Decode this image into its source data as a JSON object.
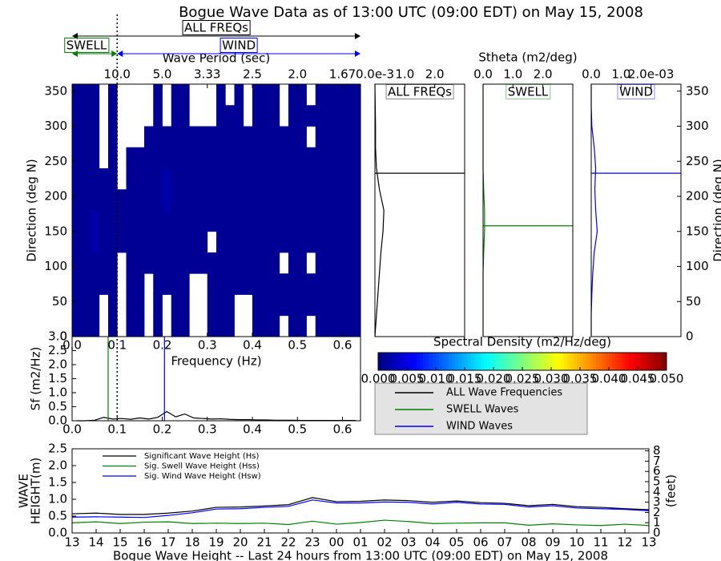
{
  "chart_data": [
    {
      "type": "heatmap",
      "title": "Bogue Wave Data as of 13:00 UTC (09:00 EDT) on May 15, 2008",
      "xlabel": "Frequency (Hz)",
      "x2label": "Wave Period (sec)",
      "ylabel": "Direction (deg N)",
      "xlim": [
        0,
        0.64
      ],
      "ylim": [
        0,
        360
      ],
      "xticks": [
        {
          "value": 0,
          "label": "0.0"
        },
        0.1,
        0.2,
        0.3,
        0.4,
        0.5,
        0.6
      ],
      "x2ticks": [
        {
          "value": 0.1,
          "label": "10.0"
        },
        {
          "value": 0.2,
          "label": "5.0"
        },
        {
          "value": 0.3,
          "label": "3.33"
        },
        {
          "value": 0.4,
          "label": "2.5"
        },
        {
          "value": 0.5,
          "label": "2.0"
        },
        {
          "value": 0.6,
          "label": "1.67"
        }
      ],
      "yticks": [
        0,
        50,
        100,
        150,
        200,
        250,
        300,
        350
      ],
      "separation_frequency": 0.1,
      "bands": [
        {
          "label": "ALL FREQs",
          "range": [
            0,
            0.64
          ],
          "color": "#000000"
        },
        {
          "label": "SWELL",
          "range": [
            0,
            0.1
          ],
          "color": "#008000"
        },
        {
          "label": "WIND",
          "range": [
            0.1,
            0.64
          ],
          "color": "#0000ff"
        }
      ],
      "x_edges": [
        0,
        0.02,
        0.04,
        0.06,
        0.08,
        0.1,
        0.12,
        0.14,
        0.16,
        0.18,
        0.2,
        0.22,
        0.24,
        0.26,
        0.28,
        0.3,
        0.32,
        0.34,
        0.36,
        0.38,
        0.4,
        0.42,
        0.44,
        0.46,
        0.48,
        0.5,
        0.52,
        0.54,
        0.56,
        0.58,
        0.6,
        0.62,
        0.64
      ],
      "y_edges": [
        0,
        30,
        60,
        90,
        120,
        150,
        180,
        210,
        240,
        270,
        300,
        330,
        360
      ],
      "z": [
        [
          0.001,
          0.001,
          0.001,
          null,
          0.001,
          null,
          0.001,
          0.001,
          null,
          0.001,
          null,
          0.001,
          0.001,
          null,
          null,
          0.001,
          0.001,
          0.001,
          null,
          null,
          0.001,
          0.001,
          0.001,
          null,
          0.001,
          0.001,
          null,
          0.001,
          0.001,
          0.001,
          0.001,
          0.001
        ],
        [
          0.001,
          0.001,
          0.001,
          null,
          0.001,
          null,
          0.001,
          0.001,
          null,
          0.001,
          null,
          0.001,
          0.001,
          null,
          null,
          0.001,
          0.001,
          0.001,
          null,
          null,
          0.001,
          0.001,
          0.001,
          0.001,
          0.001,
          0.001,
          0.001,
          0.001,
          0.001,
          0.001,
          0.001,
          0.001
        ],
        [
          0.001,
          0.001,
          0.001,
          0.001,
          0.001,
          null,
          0.001,
          0.001,
          null,
          0.001,
          0.001,
          0.001,
          0.001,
          null,
          null,
          0.001,
          0.001,
          0.001,
          0.001,
          0.001,
          0.001,
          0.001,
          0.001,
          0.001,
          0.001,
          0.001,
          0.001,
          0.001,
          0.001,
          0.001,
          0.001,
          0.001
        ],
        [
          0.001,
          0.001,
          0.001,
          0.001,
          0.001,
          null,
          0.001,
          0.001,
          0.001,
          0.001,
          0.001,
          0.001,
          0.001,
          0.001,
          0.001,
          0.001,
          0.001,
          0.001,
          0.001,
          0.001,
          0.001,
          0.001,
          0.001,
          null,
          0.001,
          0.001,
          null,
          0.001,
          0.001,
          0.001,
          0.001,
          0.001
        ],
        [
          0.001,
          0.001,
          0.002,
          0.001,
          0.001,
          0.001,
          0.001,
          0.001,
          0.001,
          0.001,
          0.001,
          0.001,
          0.001,
          0.001,
          0.001,
          null,
          0.001,
          0.001,
          0.001,
          0.001,
          0.001,
          0.001,
          0.001,
          0.001,
          0.001,
          0.001,
          0.001,
          0.001,
          0.001,
          0.001,
          0.001,
          0.001
        ],
        [
          0.001,
          0.001,
          0.002,
          0.001,
          0.001,
          0.001,
          0.001,
          0.001,
          0.001,
          0.001,
          0.001,
          0.001,
          0.001,
          0.001,
          0.001,
          0.001,
          0.001,
          0.001,
          0.001,
          0.001,
          0.001,
          0.001,
          0.001,
          0.001,
          0.001,
          0.001,
          0.001,
          0.001,
          0.001,
          0.001,
          0.001,
          0.001
        ],
        [
          0.001,
          0.001,
          0.001,
          0.001,
          0.001,
          0.001,
          0.001,
          0.001,
          0.001,
          0.001,
          0.002,
          0.001,
          0.001,
          0.001,
          0.001,
          0.001,
          0.001,
          0.001,
          0.001,
          0.001,
          0.001,
          0.001,
          0.001,
          0.001,
          0.001,
          0.001,
          0.001,
          0.001,
          0.001,
          0.001,
          0.001,
          0.001
        ],
        [
          0.001,
          0.001,
          0.001,
          0.001,
          0.001,
          null,
          0.001,
          0.001,
          0.001,
          0.001,
          0.002,
          0.001,
          0.001,
          0.001,
          0.001,
          0.001,
          0.001,
          0.001,
          0.001,
          0.001,
          0.001,
          0.001,
          0.001,
          0.001,
          0.001,
          0.001,
          0.001,
          0.001,
          0.001,
          0.001,
          0.001,
          0.001
        ],
        [
          0.001,
          0.001,
          0.001,
          null,
          0.001,
          null,
          0.001,
          0.001,
          0.001,
          0.001,
          0.001,
          0.001,
          0.001,
          0.001,
          0.001,
          0.001,
          0.001,
          0.001,
          0.001,
          0.001,
          0.001,
          0.001,
          0.001,
          0.001,
          0.001,
          0.001,
          0.001,
          0.001,
          0.001,
          0.001,
          0.001,
          0.001
        ],
        [
          0.001,
          0.001,
          0.001,
          null,
          0.001,
          null,
          null,
          null,
          0.001,
          0.001,
          0.001,
          0.001,
          0.001,
          0.001,
          0.001,
          0.001,
          0.001,
          0.001,
          0.001,
          0.001,
          0.001,
          0.001,
          0.001,
          0.001,
          0.001,
          0.001,
          null,
          0.001,
          0.001,
          0.001,
          0.001,
          0.001
        ],
        [
          0.001,
          0.001,
          0.001,
          null,
          0.001,
          null,
          null,
          null,
          null,
          0.001,
          null,
          0.001,
          0.001,
          null,
          null,
          null,
          0.001,
          0.001,
          0.001,
          null,
          0.001,
          0.001,
          0.001,
          null,
          0.001,
          0.001,
          0.001,
          0.001,
          0.001,
          0.001,
          0.001,
          0.001
        ],
        [
          0.001,
          0.001,
          0.001,
          null,
          0.001,
          null,
          null,
          null,
          null,
          0.001,
          null,
          0.001,
          0.001,
          null,
          null,
          null,
          0.001,
          null,
          0.001,
          null,
          0.001,
          0.001,
          0.001,
          null,
          0.001,
          0.001,
          null,
          0.001,
          0.001,
          0.001,
          0.001,
          0.001
        ]
      ],
      "clim": [
        0,
        0.05
      ],
      "clabel": "Spectral Density (m2/Hz/deg)",
      "cticks": [
        {
          "value": 0,
          "label": "0.000"
        },
        {
          "value": 0.005,
          "label": "0.005"
        },
        {
          "value": 0.01,
          "label": "0.010"
        },
        {
          "value": 0.015,
          "label": "0.015"
        },
        {
          "value": 0.02,
          "label": "0.020"
        },
        {
          "value": 0.025,
          "label": "0.025"
        },
        {
          "value": 0.03,
          "label": "0.030"
        },
        {
          "value": 0.035,
          "label": "0.035"
        },
        {
          "value": 0.04,
          "label": "0.040"
        },
        {
          "value": 0.045,
          "label": "0.045"
        },
        {
          "value": 0.05,
          "label": "0.050"
        }
      ]
    },
    {
      "type": "line",
      "ylabel": "Sf (m2/Hz)",
      "xlim": [
        0,
        0.64
      ],
      "ylim": [
        0,
        3.0
      ],
      "xticks": [
        {
          "value": 0,
          "label": "0.0"
        },
        0.1,
        0.2,
        0.3,
        0.4,
        0.5,
        0.6
      ],
      "yticks": [
        {
          "value": 0,
          "label": "0.0"
        },
        0.5,
        {
          "value": 1,
          "label": "1.0"
        },
        1.5,
        {
          "value": 2,
          "label": "2.0"
        },
        2.5,
        {
          "value": 3,
          "label": "3.0"
        }
      ],
      "legend": "right",
      "series": [
        {
          "name": "ALL Wave Frequencies",
          "color": "#000000",
          "x": [
            0.01,
            0.03,
            0.05,
            0.07,
            0.09,
            0.11,
            0.13,
            0.15,
            0.17,
            0.19,
            0.21,
            0.23,
            0.25,
            0.27,
            0.29,
            0.31,
            0.33,
            0.35,
            0.37,
            0.39,
            0.41,
            0.43,
            0.45,
            0.47,
            0.49,
            0.51,
            0.53,
            0.55,
            0.57,
            0.59,
            0.61,
            0.63
          ],
          "values": [
            0,
            0,
            0.02,
            0.12,
            0.06,
            0.08,
            0.05,
            0.1,
            0.06,
            0.12,
            0.33,
            0.14,
            0.24,
            0.1,
            0.08,
            0.06,
            0.07,
            0.05,
            0.04,
            0.04,
            0.03,
            0.03,
            0.02,
            0.02,
            0.02,
            0.01,
            0.01,
            0.01,
            0.01,
            0.01,
            0.01,
            0.01
          ]
        },
        {
          "name": "SWELL Waves",
          "color": "#008000",
          "peak": 0.08
        },
        {
          "name": "WIND Waves",
          "color": "#0000ff",
          "peak": 0.205
        }
      ]
    },
    {
      "type": "profile",
      "panel": "ALL FREQs",
      "color": "#000000",
      "xlim": [
        0,
        3.0
      ],
      "ylim": [
        0,
        360
      ],
      "xticks": [
        {
          "value": 0,
          "label": "0.0e-3"
        },
        {
          "value": 1,
          "label": "1.0"
        },
        {
          "value": 2,
          "label": "2.0"
        }
      ],
      "directions": [
        0,
        30,
        60,
        90,
        120,
        150,
        180,
        210,
        240,
        270,
        300,
        330,
        360
      ],
      "values": [
        0,
        0.05,
        0.1,
        0.15,
        0.2,
        0.27,
        0.3,
        0.15,
        0.05,
        0.02,
        0.02,
        0.01,
        0
      ],
      "mean_direction": 233
    },
    {
      "type": "profile",
      "panel": "SWELL",
      "color": "#008000",
      "xlabel": "Stheta (m2/deg)",
      "xlim": [
        0,
        3.0
      ],
      "ylim": [
        0,
        360
      ],
      "xticks": [
        {
          "value": 0,
          "label": "0.0"
        },
        {
          "value": 1,
          "label": "1.0"
        },
        {
          "value": 2,
          "label": "2.0"
        }
      ],
      "directions": [
        0,
        30,
        60,
        90,
        120,
        150,
        180,
        210,
        240,
        270,
        300,
        330,
        360
      ],
      "values": [
        0,
        0,
        0,
        0,
        0.02,
        0.05,
        0.05,
        0.02,
        0,
        0,
        0,
        0,
        0
      ],
      "mean_direction": 158
    },
    {
      "type": "profile",
      "panel": "WIND",
      "color": "#0000ff",
      "xlim": [
        0,
        3.0
      ],
      "ylim": [
        0,
        360
      ],
      "xticks": [
        {
          "value": 0,
          "label": "0.0"
        },
        {
          "value": 1,
          "label": "1.0"
        },
        {
          "value": 2,
          "label": "2.0e-03"
        }
      ],
      "yticks": [
        0,
        50,
        100,
        150,
        200,
        250,
        300,
        350
      ],
      "ylabel": "Direction (deg N)",
      "directions": [
        0,
        30,
        60,
        90,
        120,
        150,
        180,
        210,
        240,
        270,
        300,
        330,
        360
      ],
      "values": [
        0,
        0,
        0.02,
        0.05,
        0.1,
        0.2,
        0.15,
        0.12,
        0.15,
        0.1,
        0.02,
        0,
        0
      ],
      "mean_direction": 233
    },
    {
      "type": "line",
      "xlabel": "Bogue Wave Height -- Last 24 hours from 13:00 UTC (09:00 EDT) on May 15, 2008",
      "ylabel": [
        "WAVE",
        "HEIGHT(m)"
      ],
      "y2label": "(feet)",
      "categories": [
        "13",
        "14",
        "15",
        "16",
        "17",
        "18",
        "19",
        "20",
        "21",
        "22",
        "23",
        "00",
        "01",
        "02",
        "03",
        "04",
        "05",
        "06",
        "07",
        "08",
        "09",
        "10",
        "11",
        "12",
        "13"
      ],
      "ylim": [
        0,
        2.5
      ],
      "yticks": [
        {
          "value": 0,
          "label": "0.0"
        },
        0.5,
        {
          "value": 1,
          "label": "1.0"
        },
        1.5,
        {
          "value": 2,
          "label": "2.0"
        },
        2.5
      ],
      "y2lim": [
        0,
        8.2021
      ],
      "y2ticks": [
        0,
        1,
        2,
        3,
        4,
        5,
        6,
        7,
        8
      ],
      "legend": "upper left",
      "series": [
        {
          "name": "Significant Wave Height (Hs)",
          "color": "#000000",
          "values": [
            0.57,
            0.59,
            0.55,
            0.55,
            0.59,
            0.65,
            0.76,
            0.77,
            0.8,
            0.84,
            1.05,
            0.93,
            0.94,
            0.98,
            0.96,
            0.91,
            0.95,
            0.9,
            0.88,
            0.81,
            0.85,
            0.78,
            0.76,
            0.72,
            0.69
          ]
        },
        {
          "name": "Sig. Swell Wave Height (Hss)",
          "color": "#008000",
          "values": [
            0.3,
            0.33,
            0.28,
            0.32,
            0.33,
            0.28,
            0.29,
            0.28,
            0.29,
            0.25,
            0.35,
            0.26,
            0.31,
            0.38,
            0.34,
            0.28,
            0.29,
            0.3,
            0.3,
            0.23,
            0.27,
            0.24,
            0.22,
            0.26,
            0.22
          ]
        },
        {
          "name": "Sig. Wind Wave Height (Hsw)",
          "color": "#0000ff",
          "values": [
            0.47,
            0.48,
            0.47,
            0.46,
            0.52,
            0.6,
            0.71,
            0.72,
            0.76,
            0.79,
            0.98,
            0.89,
            0.89,
            0.92,
            0.91,
            0.86,
            0.91,
            0.86,
            0.85,
            0.77,
            0.81,
            0.74,
            0.72,
            0.7,
            0.66
          ]
        }
      ]
    }
  ]
}
